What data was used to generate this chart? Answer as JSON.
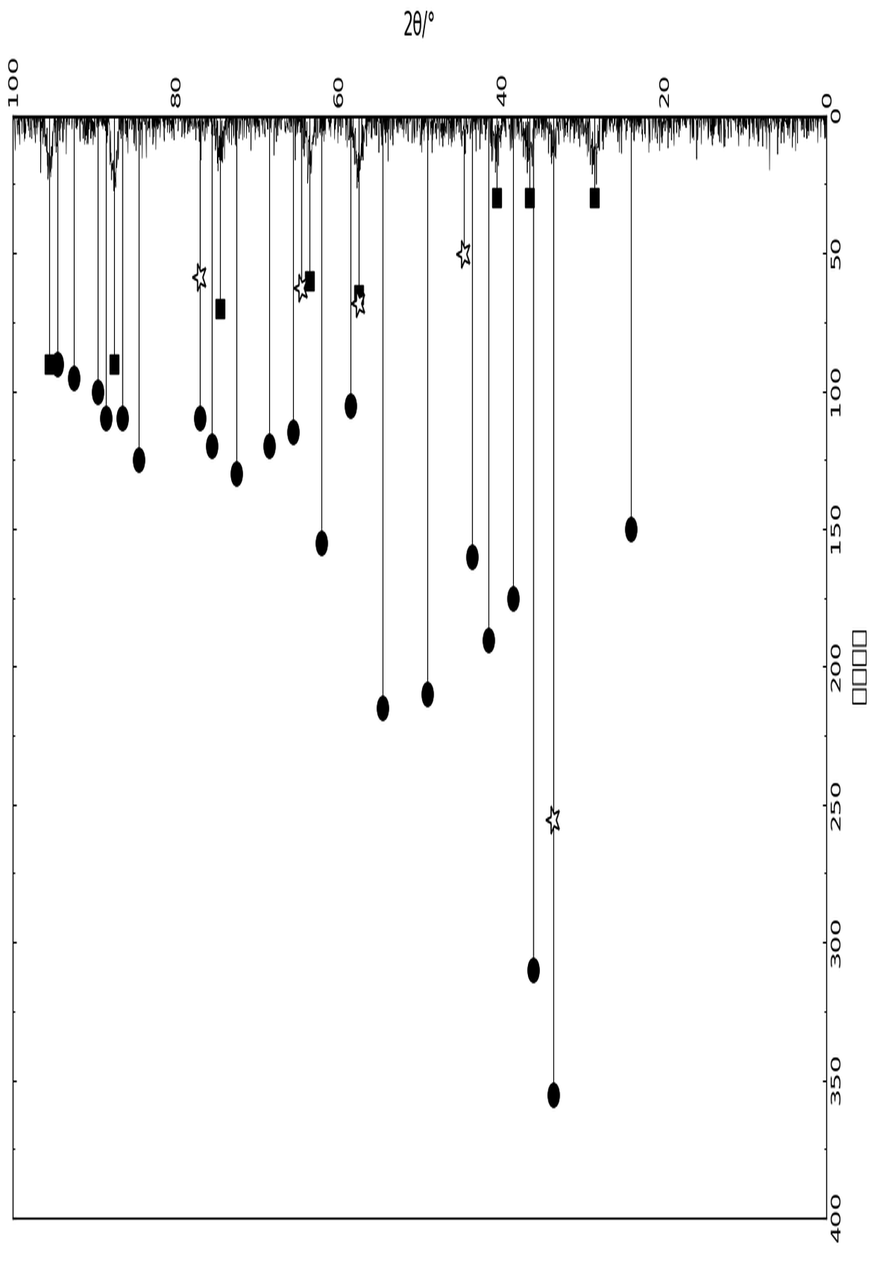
{
  "xlabel": "相对强度",
  "ylabel": "2θ/°",
  "intensity_range": [
    0,
    400
  ],
  "theta_range": [
    0,
    100
  ],
  "intensity_ticks": [
    0,
    50,
    100,
    150,
    200,
    250,
    300,
    350,
    400
  ],
  "theta_ticks": [
    0,
    20,
    40,
    60,
    80,
    100
  ],
  "circle_points": [
    [
      24.0,
      150
    ],
    [
      33.5,
      355
    ],
    [
      36.0,
      310
    ],
    [
      38.5,
      175
    ],
    [
      41.5,
      190
    ],
    [
      43.5,
      160
    ],
    [
      49.0,
      210
    ],
    [
      54.5,
      215
    ],
    [
      58.5,
      105
    ],
    [
      62.0,
      155
    ],
    [
      65.5,
      115
    ],
    [
      68.5,
      120
    ],
    [
      72.5,
      130
    ],
    [
      75.5,
      120
    ],
    [
      77.0,
      110
    ],
    [
      84.5,
      125
    ],
    [
      86.5,
      110
    ],
    [
      88.5,
      110
    ],
    [
      89.5,
      100
    ],
    [
      92.5,
      95
    ],
    [
      94.5,
      90
    ]
  ],
  "square_points": [
    [
      28.5,
      30
    ],
    [
      36.5,
      30
    ],
    [
      40.5,
      30
    ],
    [
      57.5,
      65
    ],
    [
      63.5,
      60
    ],
    [
      74.5,
      70
    ],
    [
      87.5,
      90
    ],
    [
      95.5,
      90
    ]
  ],
  "star_points": [
    [
      33.5,
      255
    ],
    [
      44.5,
      50
    ],
    [
      57.5,
      68
    ],
    [
      64.5,
      62
    ],
    [
      77.0,
      58
    ]
  ],
  "xrd_noise_seed": 42,
  "figure_bg": "#ffffff",
  "marker_color": "#000000",
  "line_color": "#000000"
}
